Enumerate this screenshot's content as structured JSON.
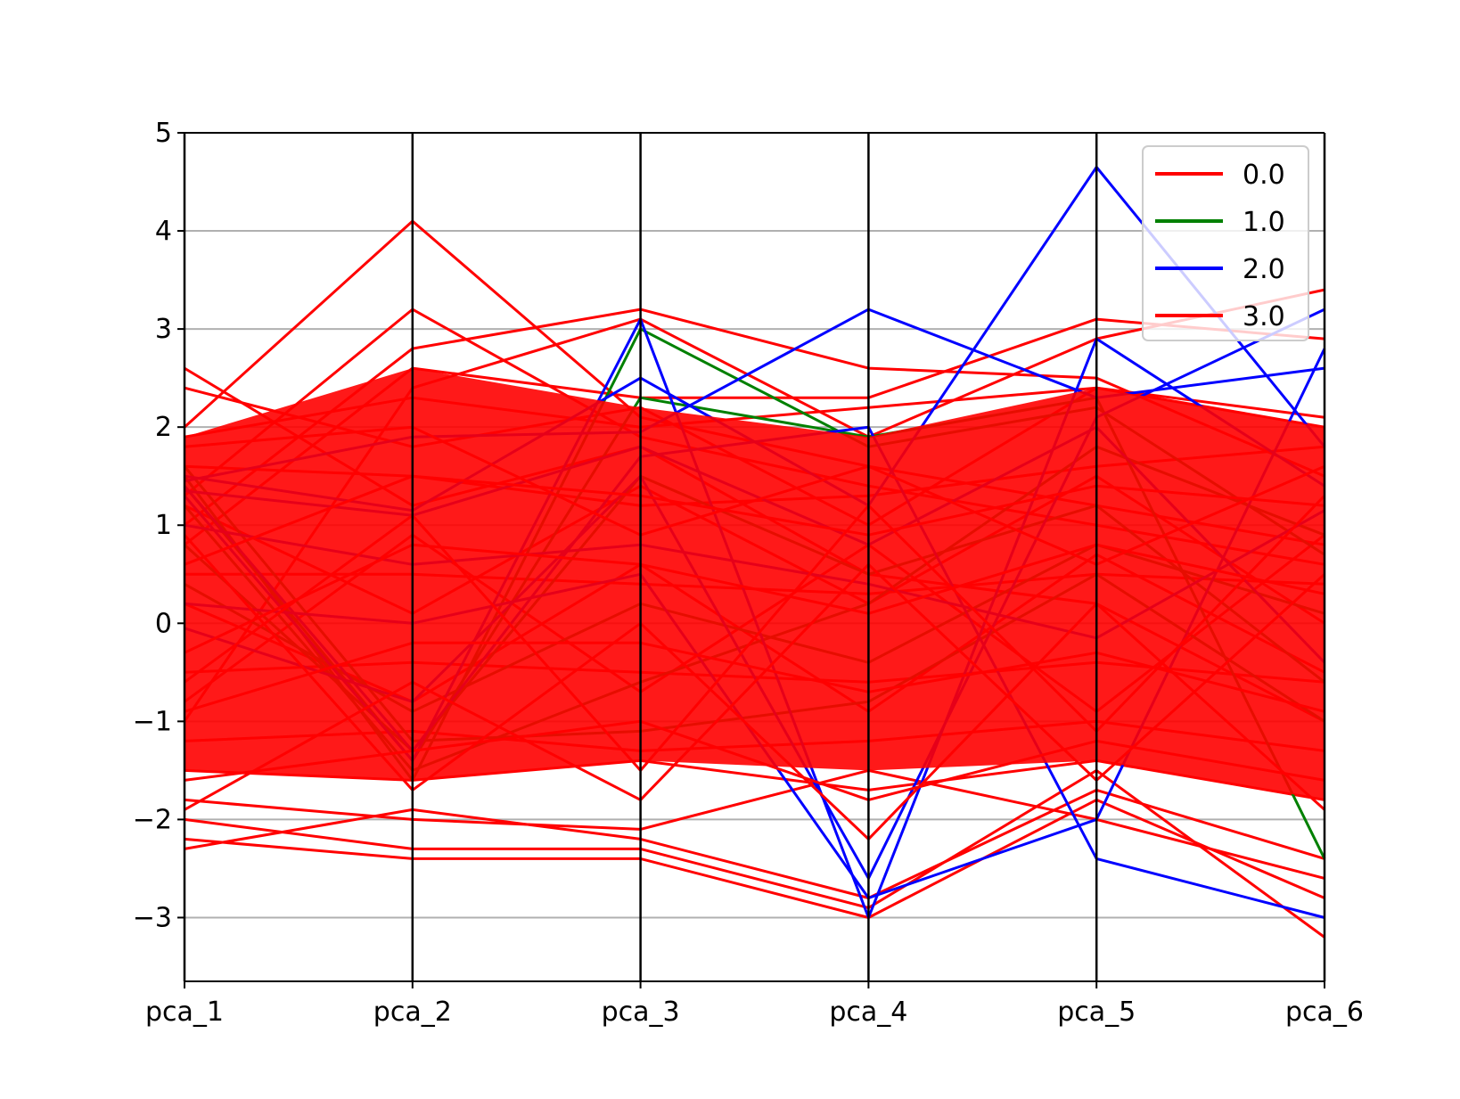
{
  "chart_data": {
    "type": "parallel-coordinates",
    "title": "",
    "xlabel": "",
    "ylabel": "",
    "axes": [
      "pca_1",
      "pca_2",
      "pca_3",
      "pca_4",
      "pca_5",
      "pca_6"
    ],
    "ylim": [
      -3.65,
      5.0
    ],
    "yticks": [
      -3,
      -2,
      -1,
      0,
      1,
      2,
      3,
      4,
      5
    ],
    "ytick_labels": [
      "−3",
      "−2",
      "−1",
      "0",
      "1",
      "2",
      "3",
      "4",
      "5"
    ],
    "grid": "horizontal",
    "legend": {
      "placement": "top-right",
      "entries": [
        {
          "label": "0.0",
          "color": "#ff0000"
        },
        {
          "label": "1.0",
          "color": "#008000"
        },
        {
          "label": "2.0",
          "color": "#0000ff"
        },
        {
          "label": "3.0",
          "color": "#ff0000"
        }
      ]
    },
    "series": [
      {
        "class": "3.0",
        "color": "#ff0000",
        "values": [
          [
            2.0,
            4.1,
            2.1,
            1.6,
            1.2,
            0.8
          ],
          [
            1.3,
            3.2,
            1.9,
            1.4,
            1.0,
            0.6
          ],
          [
            1.0,
            2.8,
            3.2,
            2.6,
            2.5,
            1.5
          ],
          [
            0.8,
            2.6,
            2.3,
            2.3,
            3.1,
            2.9
          ],
          [
            -1.0,
            2.4,
            3.1,
            1.9,
            2.9,
            3.4
          ],
          [
            2.6,
            1.2,
            1.8,
            0.5,
            0.2,
            -1.0
          ],
          [
            2.4,
            1.8,
            2.2,
            1.0,
            2.4,
            2.0
          ],
          [
            -2.2,
            -2.4,
            -2.4,
            -3.0,
            -1.8,
            -2.8
          ],
          [
            -2.0,
            -2.3,
            -2.3,
            -2.9,
            -1.5,
            -3.2
          ],
          [
            -1.8,
            -2.0,
            -2.1,
            -1.5,
            -2.0,
            -2.6
          ],
          [
            -2.3,
            -1.9,
            -2.2,
            -2.8,
            -1.7,
            -2.4
          ],
          [
            1.6,
            1.5,
            1.2,
            1.3,
            1.6,
            1.8
          ],
          [
            0.5,
            0.5,
            0.4,
            0.3,
            0.5,
            0.4
          ],
          [
            -0.5,
            -0.4,
            -0.5,
            -0.6,
            -0.4,
            -0.6
          ],
          [
            -1.2,
            -1.1,
            -1.3,
            -1.2,
            -1.0,
            -1.3
          ],
          [
            0.2,
            -0.8,
            0.6,
            -0.9,
            0.7,
            -0.5
          ],
          [
            -0.8,
            0.9,
            -0.7,
            0.8,
            -0.9,
            0.9
          ],
          [
            1.9,
            2.3,
            2.0,
            2.2,
            2.4,
            2.1
          ],
          [
            -1.5,
            -1.6,
            -1.4,
            -1.7,
            -1.4,
            -1.8
          ],
          [
            1.2,
            0.1,
            1.4,
            0.2,
            1.5,
            0.0
          ]
        ]
      },
      {
        "class": "1.0",
        "color": "#008000",
        "values": [
          [
            1.5,
            -1.6,
            3.0,
            1.8,
            2.2,
            0.7
          ],
          [
            1.4,
            -1.4,
            2.3,
            1.9,
            2.3,
            -2.4
          ],
          [
            1.6,
            -1.2,
            -1.1,
            -0.8,
            0.5,
            -1.0
          ],
          [
            1.2,
            -1.5,
            -0.6,
            0.2,
            1.8,
            0.9
          ],
          [
            0.8,
            -1.3,
            1.5,
            0.5,
            1.2,
            -0.6
          ],
          [
            0.4,
            -0.9,
            0.2,
            -0.4,
            0.8,
            0.1
          ]
        ]
      },
      {
        "class": "2.0",
        "color": "#0000ff",
        "values": [
          [
            1.5,
            1.15,
            2.5,
            1.2,
            4.65,
            1.8
          ],
          [
            1.45,
            1.9,
            1.95,
            3.2,
            2.3,
            2.6
          ],
          [
            1.3,
            -1.4,
            3.1,
            -3.0,
            2.9,
            1.4
          ],
          [
            1.0,
            0.6,
            0.8,
            0.4,
            -0.15,
            1.15
          ],
          [
            1.4,
            -1.3,
            1.7,
            2.0,
            -2.4,
            -3.0
          ],
          [
            -0.05,
            -0.8,
            1.5,
            -2.6,
            2.1,
            3.2
          ],
          [
            0.2,
            0.0,
            0.5,
            -2.8,
            -2.0,
            2.8
          ],
          [
            1.35,
            1.1,
            1.8,
            0.8,
            2.0,
            -0.4
          ]
        ]
      },
      {
        "class": "0.0",
        "color": "#ff0000",
        "values": [
          [
            0.6,
            1.5,
            1.3,
            0.9,
            1.4,
            1.2
          ],
          [
            -0.3,
            0.8,
            0.6,
            0.1,
            0.8,
            0.3
          ],
          [
            -0.9,
            -0.2,
            -0.2,
            -0.7,
            -0.3,
            -0.9
          ],
          [
            -1.6,
            -1.3,
            -1.0,
            -1.8,
            -1.2,
            -1.6
          ],
          [
            0.9,
            -1.7,
            0.0,
            -2.2,
            0.2,
            -1.9
          ],
          [
            -1.9,
            -0.6,
            -1.8,
            0.6,
            -1.6,
            0.5
          ],
          [
            1.8,
            2.0,
            0.9,
            1.6,
            0.6,
            1.6
          ],
          [
            -0.6,
            1.1,
            -1.5,
            1.2,
            -1.1,
            1.3
          ]
        ]
      }
    ]
  }
}
